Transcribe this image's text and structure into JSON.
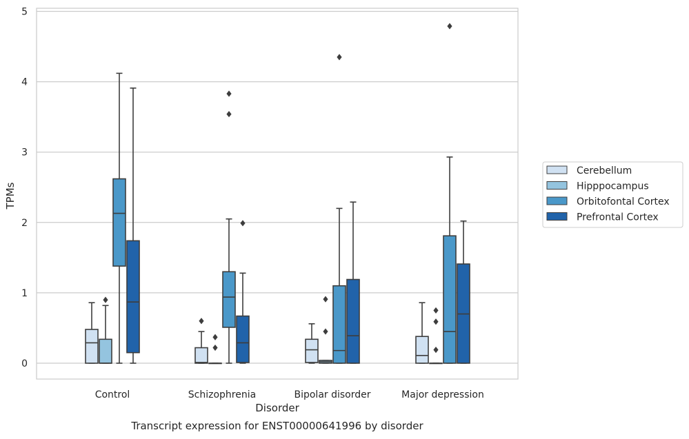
{
  "chart_data": {
    "type": "box",
    "title": "",
    "caption": "Transcript expression for ENST00000641996 by disorder",
    "xlabel": "Disorder",
    "ylabel": "TPMs",
    "ylim": [
      -0.22,
      5.05
    ],
    "yticks": [
      0,
      1,
      2,
      3,
      4,
      5
    ],
    "grid": true,
    "legend_position": "right",
    "categories": [
      "Control",
      "Schizophrenia",
      "Bipolar disorder",
      "Major depression"
    ],
    "series": [
      {
        "name": "Cerebellum",
        "color": "#d0e1f2",
        "boxes": [
          {
            "whislo": 0,
            "q1": 0,
            "med": 0.29,
            "q3": 0.48,
            "whishi": 0.86,
            "fliers": []
          },
          {
            "whislo": 0,
            "q1": 0,
            "med": 0.01,
            "q3": 0.22,
            "whishi": 0.45,
            "fliers": [
              0.6
            ]
          },
          {
            "whislo": 0,
            "q1": 0.01,
            "med": 0.19,
            "q3": 0.34,
            "whishi": 0.56,
            "fliers": []
          },
          {
            "whislo": 0,
            "q1": 0,
            "med": 0.11,
            "q3": 0.38,
            "whishi": 0.86,
            "fliers": []
          }
        ]
      },
      {
        "name": "Hipppocampus",
        "color": "#94c4df",
        "boxes": [
          {
            "whislo": 0,
            "q1": 0,
            "med": 0,
            "q3": 0.34,
            "whishi": 0.82,
            "fliers": [
              0.9
            ]
          },
          {
            "whislo": 0,
            "q1": 0,
            "med": 0,
            "q3": 0,
            "whishi": 0,
            "fliers": [
              0.22,
              0.37
            ]
          },
          {
            "whislo": 0,
            "q1": 0,
            "med": 0.02,
            "q3": 0.04,
            "whishi": 0.04,
            "fliers": [
              0.45,
              0.91
            ]
          },
          {
            "whislo": 0,
            "q1": 0,
            "med": 0,
            "q3": 0,
            "whishi": 0,
            "fliers": [
              0.19,
              0.59,
              0.75
            ]
          }
        ]
      },
      {
        "name": "Orbitofontal Cortex",
        "color": "#4a98c9",
        "boxes": [
          {
            "whislo": 0,
            "q1": 1.38,
            "med": 2.13,
            "q3": 2.62,
            "whishi": 4.12,
            "fliers": []
          },
          {
            "whislo": 0,
            "q1": 0.51,
            "med": 0.94,
            "q3": 1.3,
            "whishi": 2.05,
            "fliers": [
              3.54,
              3.83
            ]
          },
          {
            "whislo": 0,
            "q1": 0,
            "med": 0.18,
            "q3": 1.1,
            "whishi": 2.2,
            "fliers": [
              4.35
            ]
          },
          {
            "whislo": 0,
            "q1": 0,
            "med": 0.45,
            "q3": 1.81,
            "whishi": 2.93,
            "fliers": [
              4.79
            ]
          }
        ]
      },
      {
        "name": "Prefrontal Cortex",
        "color": "#2163aa",
        "boxes": [
          {
            "whislo": 0,
            "q1": 0.15,
            "med": 0.87,
            "q3": 1.74,
            "whishi": 3.91,
            "fliers": []
          },
          {
            "whislo": 0,
            "q1": 0.01,
            "med": 0.29,
            "q3": 0.67,
            "whishi": 1.28,
            "fliers": [
              1.99
            ]
          },
          {
            "whislo": 0,
            "q1": 0,
            "med": 0.39,
            "q3": 1.19,
            "whishi": 2.29,
            "fliers": []
          },
          {
            "whislo": 0,
            "q1": 0,
            "med": 0.7,
            "q3": 1.41,
            "whishi": 2.02,
            "fliers": []
          }
        ]
      }
    ]
  }
}
